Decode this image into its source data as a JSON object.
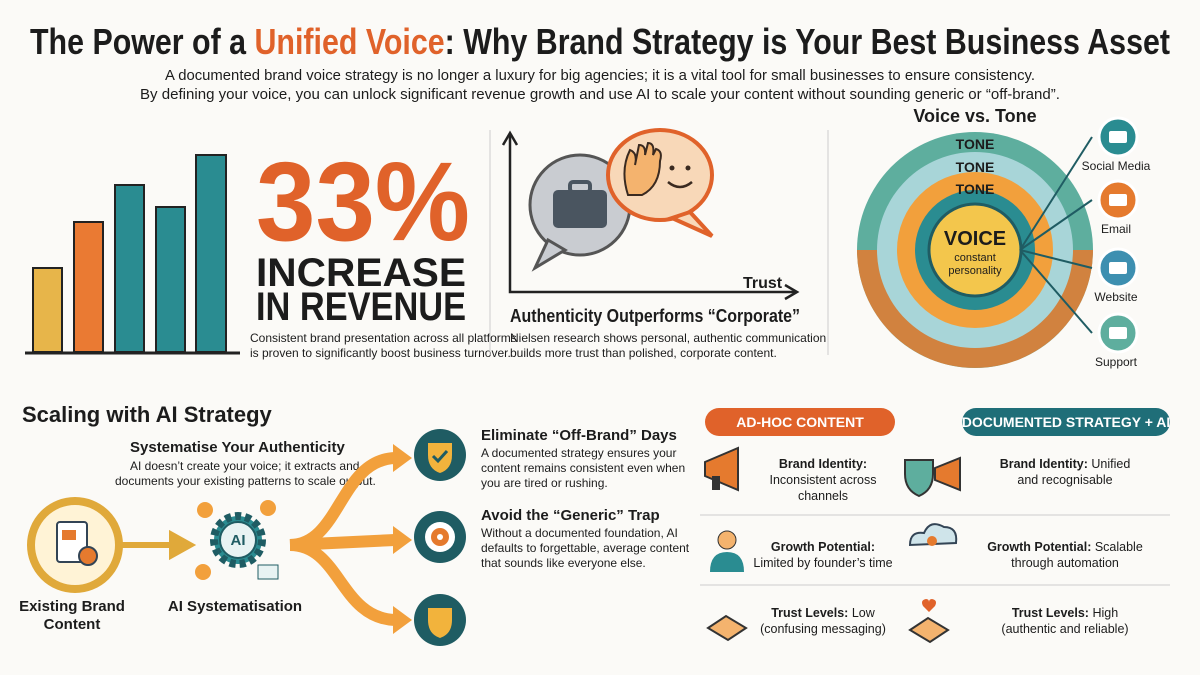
{
  "header": {
    "title_parts": [
      "The Power of a ",
      "Unified Voice",
      ": Why Brand Strategy is Your Best Business Asset"
    ],
    "subtitle_lines": [
      "A documented brand voice strategy is no longer a luxury for big agencies; it is a vital tool for small businesses to ensure consistency.",
      "By defining your voice, you can unlock significant revenue growth and use AI to scale your content without sounding generic or “off-brand”."
    ]
  },
  "revenue": {
    "stat": "33%",
    "headline_lines": [
      "INCREASE",
      "IN REVENUE"
    ],
    "text_lines": [
      "Consistent brand presentation across all platforms",
      "is proven to significantly boost business turnover."
    ]
  },
  "authenticity": {
    "axis_label": "Trust",
    "title": "Authenticity Outperforms “Corporate”",
    "text_lines": [
      "Nielsen research shows personal, authentic communication",
      "builds more trust than polished, corporate content."
    ]
  },
  "voice_tone": {
    "title": "Voice vs. Tone",
    "tone_labels": [
      "TONE",
      "TONE",
      "TONE"
    ],
    "voice": "VOICE",
    "voice_sub_lines": [
      "constant",
      "personality"
    ],
    "channels": [
      "Social Media",
      "Email",
      "Website",
      "Support"
    ]
  },
  "ai": {
    "title": "Scaling with AI Strategy",
    "subtitle": "Systematise Your Authenticity",
    "text_lines": [
      "AI doesn’t create your voice; it extracts and",
      "documents your existing patterns to scale output."
    ],
    "source_label_lines": [
      "Existing Brand",
      "Content"
    ],
    "icon_text": "AI",
    "process_label": "AI Systematisation",
    "outcomes": [
      {
        "title": "Eliminate “Off-Brand” Days",
        "text_lines": [
          "A documented strategy ensures your",
          "content remains consistent even when",
          "you are tired or rushing."
        ]
      },
      {
        "title": "Avoid the “Generic” Trap",
        "text_lines": [
          "Without a documented foundation, AI",
          "defaults to forgettable, average content",
          "that sounds like everyone else."
        ]
      }
    ]
  },
  "comparison": {
    "columns": [
      "AD-HOC CONTENT",
      "DOCUMENTED STRATEGY + AI"
    ],
    "rows": [
      {
        "adhoc": {
          "label": "Brand Identity:",
          "lines": [
            "Inconsistent across",
            "channels"
          ]
        },
        "documented": {
          "label": "Brand Identity:",
          "inline": " Unified",
          "lines": [
            "and recognisable"
          ]
        }
      },
      {
        "adhoc": {
          "label": "Growth Potential:",
          "lines": [
            "Limited by founder’s time"
          ]
        },
        "documented": {
          "label": "Growth Potential:",
          "inline": " Scalable",
          "lines": [
            "through automation"
          ]
        }
      },
      {
        "adhoc": {
          "label": "Trust Levels:",
          "inline": " Low",
          "lines": [
            "(confusing messaging)"
          ]
        },
        "documented": {
          "label": "Trust Levels:",
          "inline": " High",
          "lines": [
            "(authentic and reliable)"
          ]
        }
      }
    ]
  }
}
